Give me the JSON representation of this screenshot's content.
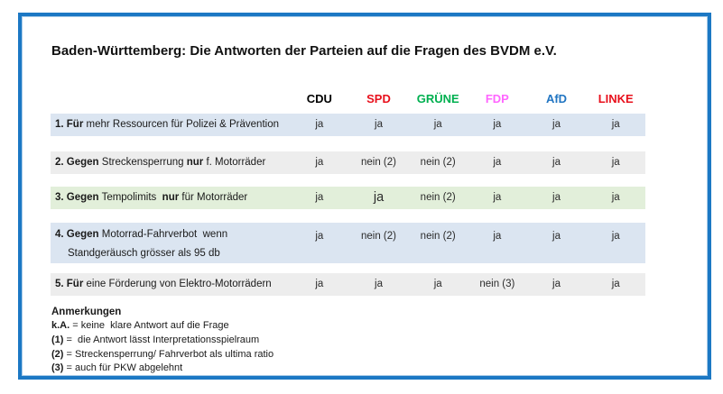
{
  "title": "Baden-Württemberg: Die Antworten der Parteien auf die Fragen des BVDM e.V.",
  "parties": [
    {
      "label": "CDU",
      "color": "#000000"
    },
    {
      "label": "SPD",
      "color": "#e8101c"
    },
    {
      "label": "GRÜNE",
      "color": "#00b050"
    },
    {
      "label": "FDP",
      "color": "#ff66ff"
    },
    {
      "label": "AfD",
      "color": "#2175c2"
    },
    {
      "label": "LINKE",
      "color": "#e8101c"
    }
  ],
  "colors": {
    "border_blue": "#1c78c4",
    "row_blue": "#dbe5f1",
    "row_gray": "#ededed",
    "row_green": "#e2efda"
  },
  "rows": [
    {
      "segments": [
        {
          "text": "1. Für",
          "bold": true
        },
        {
          "text": " mehr Ressourcen für Polizei & Prävention",
          "bold": false
        },
        {
          "text": "",
          "bold": true
        },
        {
          "text": "",
          "bold": false
        }
      ],
      "line2": "",
      "answers": [
        "ja",
        "ja",
        "ja",
        "ja",
        "ja",
        "ja"
      ],
      "bg": "#dbe5f1"
    },
    {
      "segments": [
        {
          "text": "2. Gegen",
          "bold": true
        },
        {
          "text": " Streckensperrung ",
          "bold": false
        },
        {
          "text": "nur",
          "bold": true
        },
        {
          "text": " f. Motorräder",
          "bold": false
        }
      ],
      "line2": "",
      "answers": [
        "ja",
        "nein (2)",
        "nein (2)",
        "ja",
        "ja",
        "ja"
      ],
      "bg": "#ededed"
    },
    {
      "segments": [
        {
          "text": "3. Gegen",
          "bold": true
        },
        {
          "text": " Tempolimits  ",
          "bold": false
        },
        {
          "text": "nur",
          "bold": true
        },
        {
          "text": " für Motorräder",
          "bold": false
        }
      ],
      "line2": "",
      "answers": [
        "ja",
        "ja",
        "nein (2)",
        "ja",
        "ja",
        "ja"
      ],
      "bg": "#e2efda"
    },
    {
      "segments": [
        {
          "text": "4. Gegen",
          "bold": true
        },
        {
          "text": " Motorrad-Fahrverbot  wenn",
          "bold": false
        },
        {
          "text": "",
          "bold": true
        },
        {
          "text": "",
          "bold": false
        }
      ],
      "line2": "Standgeräusch grösser als 95 db",
      "answers": [
        "ja",
        "nein (2)",
        "nein (2)",
        "ja",
        "ja",
        "ja"
      ],
      "bg": "#dbe5f1"
    },
    {
      "segments": [
        {
          "text": "5. Für",
          "bold": true
        },
        {
          "text": " eine Förderung von Elektro-Motorrädern",
          "bold": false
        },
        {
          "text": "",
          "bold": true
        },
        {
          "text": "",
          "bold": false
        }
      ],
      "line2": "",
      "answers": [
        "ja",
        "ja",
        "ja",
        "nein (3)",
        "ja",
        "ja"
      ],
      "bg": "#ededed"
    }
  ],
  "notes": {
    "heading": "Anmerkungen",
    "items": [
      {
        "bold": "k.A.",
        "rest": " = keine  klare Antwort auf die Frage"
      },
      {
        "bold": "(1)",
        "rest": " =  die Antwort lässt Interpretationsspielraum"
      },
      {
        "bold": "(2)",
        "rest": " = Streckensperrung/ Fahrverbot als ultima ratio"
      },
      {
        "bold": "(3)",
        "rest": " = auch für PKW abgelehnt"
      }
    ]
  }
}
